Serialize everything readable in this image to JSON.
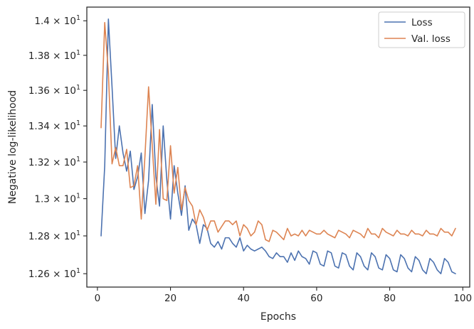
{
  "chart_data": {
    "type": "line",
    "title": "",
    "xlabel": "Epochs",
    "ylabel": "Negative log-likelihood",
    "xlim": [
      -2.9,
      101.9
    ],
    "ylim": [
      12.53,
      14.08
    ],
    "yscale": "log",
    "grid": false,
    "legend_position": "top-right",
    "x_ticks": [
      0,
      20,
      40,
      60,
      80,
      100
    ],
    "x_tick_labels": [
      "0",
      "20",
      "40",
      "60",
      "80",
      "100"
    ],
    "y_ticks": [
      12.6,
      12.8,
      13.0,
      13.2,
      13.4,
      13.6,
      13.8,
      14.0
    ],
    "y_tick_labels": [
      {
        "base": "1.26 × 10",
        "exp": "1"
      },
      {
        "base": "1.28 × 10",
        "exp": "1"
      },
      {
        "base": "1.3 × 10",
        "exp": "1"
      },
      {
        "base": "1.32 × 10",
        "exp": "1"
      },
      {
        "base": "1.34 × 10",
        "exp": "1"
      },
      {
        "base": "1.36 × 10",
        "exp": "1"
      },
      {
        "base": "1.38 × 10",
        "exp": "1"
      },
      {
        "base": "1.4 × 10",
        "exp": "1"
      }
    ],
    "x": [
      1,
      2,
      3,
      4,
      5,
      6,
      7,
      8,
      9,
      10,
      11,
      12,
      13,
      14,
      15,
      16,
      17,
      18,
      19,
      20,
      21,
      22,
      23,
      24,
      25,
      26,
      27,
      28,
      29,
      30,
      31,
      32,
      33,
      34,
      35,
      36,
      37,
      38,
      39,
      40,
      41,
      42,
      43,
      44,
      45,
      46,
      47,
      48,
      49,
      50,
      51,
      52,
      53,
      54,
      55,
      56,
      57,
      58,
      59,
      60,
      61,
      62,
      63,
      64,
      65,
      66,
      67,
      68,
      69,
      70,
      71,
      72,
      73,
      74,
      75,
      76,
      77,
      78,
      79,
      80,
      81,
      82,
      83,
      84,
      85,
      86,
      87,
      88,
      89,
      90,
      91,
      92,
      93,
      94,
      95,
      96,
      97,
      98
    ],
    "series": [
      {
        "name": "Loss",
        "color": "#4c72b0",
        "values": [
          12.8,
          13.18,
          14.01,
          13.62,
          13.22,
          13.4,
          13.25,
          13.15,
          13.26,
          13.05,
          13.12,
          13.25,
          12.92,
          13.1,
          13.52,
          13.12,
          12.96,
          13.4,
          13.1,
          12.89,
          13.18,
          13.03,
          12.91,
          13.07,
          12.83,
          12.89,
          12.86,
          12.76,
          12.86,
          12.84,
          12.76,
          12.74,
          12.77,
          12.73,
          12.79,
          12.79,
          12.76,
          12.74,
          12.79,
          12.72,
          12.75,
          12.73,
          12.72,
          12.73,
          12.74,
          12.72,
          12.69,
          12.68,
          12.71,
          12.69,
          12.69,
          12.66,
          12.71,
          12.67,
          12.72,
          12.69,
          12.68,
          12.65,
          12.72,
          12.71,
          12.65,
          12.64,
          12.72,
          12.71,
          12.64,
          12.63,
          12.71,
          12.7,
          12.64,
          12.62,
          12.71,
          12.69,
          12.64,
          12.62,
          12.71,
          12.69,
          12.63,
          12.62,
          12.7,
          12.68,
          12.62,
          12.61,
          12.7,
          12.68,
          12.63,
          12.61,
          12.69,
          12.67,
          12.62,
          12.6,
          12.68,
          12.66,
          12.62,
          12.6,
          12.68,
          12.66,
          12.61,
          12.6
        ]
      },
      {
        "name": "Val. loss",
        "color": "#dd8452",
        "values": [
          13.39,
          13.99,
          13.7,
          13.19,
          13.28,
          13.18,
          13.18,
          13.27,
          13.06,
          13.07,
          13.18,
          12.89,
          13.23,
          13.62,
          13.29,
          12.97,
          13.38,
          13.0,
          12.99,
          13.29,
          13.03,
          13.17,
          12.94,
          13.06,
          12.99,
          12.96,
          12.86,
          12.94,
          12.9,
          12.83,
          12.88,
          12.88,
          12.82,
          12.85,
          12.88,
          12.88,
          12.86,
          12.88,
          12.8,
          12.86,
          12.84,
          12.8,
          12.82,
          12.88,
          12.86,
          12.78,
          12.77,
          12.83,
          12.82,
          12.8,
          12.78,
          12.84,
          12.8,
          12.81,
          12.8,
          12.83,
          12.8,
          12.83,
          12.82,
          12.81,
          12.81,
          12.83,
          12.81,
          12.8,
          12.79,
          12.83,
          12.82,
          12.81,
          12.79,
          12.83,
          12.82,
          12.81,
          12.79,
          12.84,
          12.81,
          12.81,
          12.79,
          12.84,
          12.82,
          12.81,
          12.8,
          12.83,
          12.81,
          12.81,
          12.8,
          12.83,
          12.81,
          12.81,
          12.8,
          12.83,
          12.81,
          12.81,
          12.8,
          12.84,
          12.82,
          12.82,
          12.8,
          12.84
        ]
      }
    ]
  }
}
